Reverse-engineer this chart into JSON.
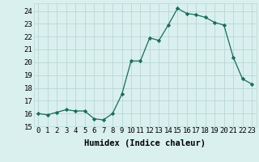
{
  "x": [
    0,
    1,
    2,
    3,
    4,
    5,
    6,
    7,
    8,
    9,
    10,
    11,
    12,
    13,
    14,
    15,
    16,
    17,
    18,
    19,
    20,
    21,
    22,
    23
  ],
  "y": [
    16.0,
    15.9,
    16.1,
    16.3,
    16.2,
    16.2,
    15.6,
    15.5,
    16.0,
    17.5,
    20.1,
    20.1,
    21.9,
    21.7,
    22.9,
    24.2,
    23.8,
    23.7,
    23.5,
    23.1,
    22.9,
    20.4,
    18.7,
    18.3
  ],
  "line_color": "#1a6b5a",
  "marker": "D",
  "marker_size": 2.2,
  "bg_color": "#d9f0ee",
  "grid_color": "#b8d8d4",
  "xlabel": "Humidex (Indice chaleur)",
  "xlim": [
    -0.5,
    23.5
  ],
  "ylim": [
    15.0,
    24.6
  ],
  "yticks": [
    15,
    16,
    17,
    18,
    19,
    20,
    21,
    22,
    23,
    24
  ],
  "xticks": [
    0,
    1,
    2,
    3,
    4,
    5,
    6,
    7,
    8,
    9,
    10,
    11,
    12,
    13,
    14,
    15,
    16,
    17,
    18,
    19,
    20,
    21,
    22,
    23
  ],
  "tick_fontsize": 6.5,
  "label_fontsize": 7.5
}
